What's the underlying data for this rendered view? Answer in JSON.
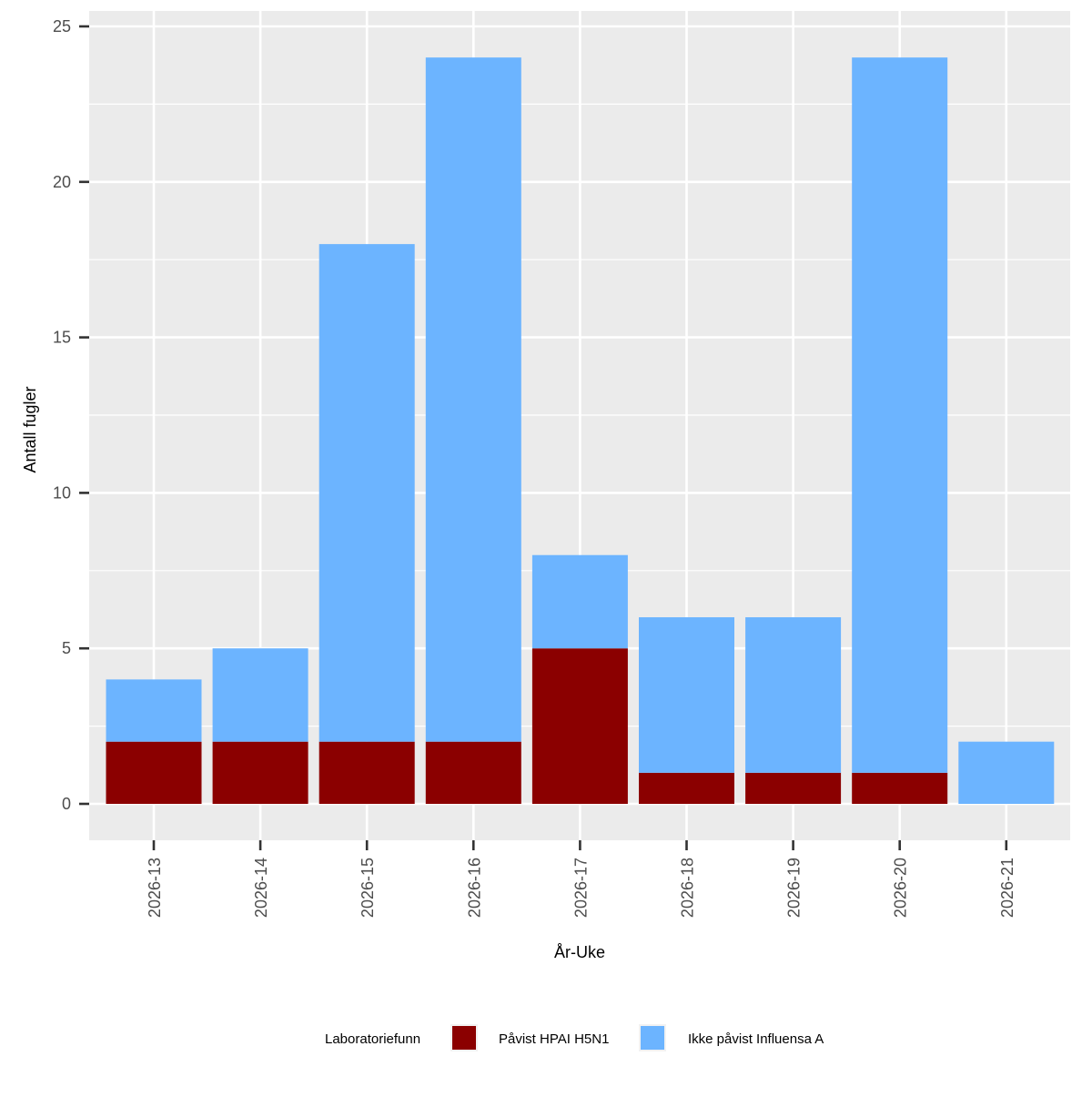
{
  "chart_data": {
    "type": "bar",
    "stacked": true,
    "categories": [
      "2026-13",
      "2026-14",
      "2026-15",
      "2026-16",
      "2026-17",
      "2026-18",
      "2026-19",
      "2026-20",
      "2026-21"
    ],
    "series": [
      {
        "name": "Påvist HPAI H5N1",
        "color": "#8B0000",
        "values": [
          2,
          2,
          2,
          2,
          5,
          1,
          1,
          1,
          0
        ]
      },
      {
        "name": "Ikke påvist Influensa A",
        "color": "#6CB4FF",
        "values": [
          2,
          3,
          16,
          22,
          3,
          5,
          5,
          23,
          2
        ]
      }
    ],
    "xlabel": "År-Uke",
    "ylabel": "Antall fugler",
    "ylim": [
      0,
      25
    ],
    "yticks": [
      0,
      5,
      10,
      15,
      20,
      25
    ],
    "grid": true,
    "legend": {
      "title": "Laboratoriefunn",
      "position": "bottom"
    }
  }
}
